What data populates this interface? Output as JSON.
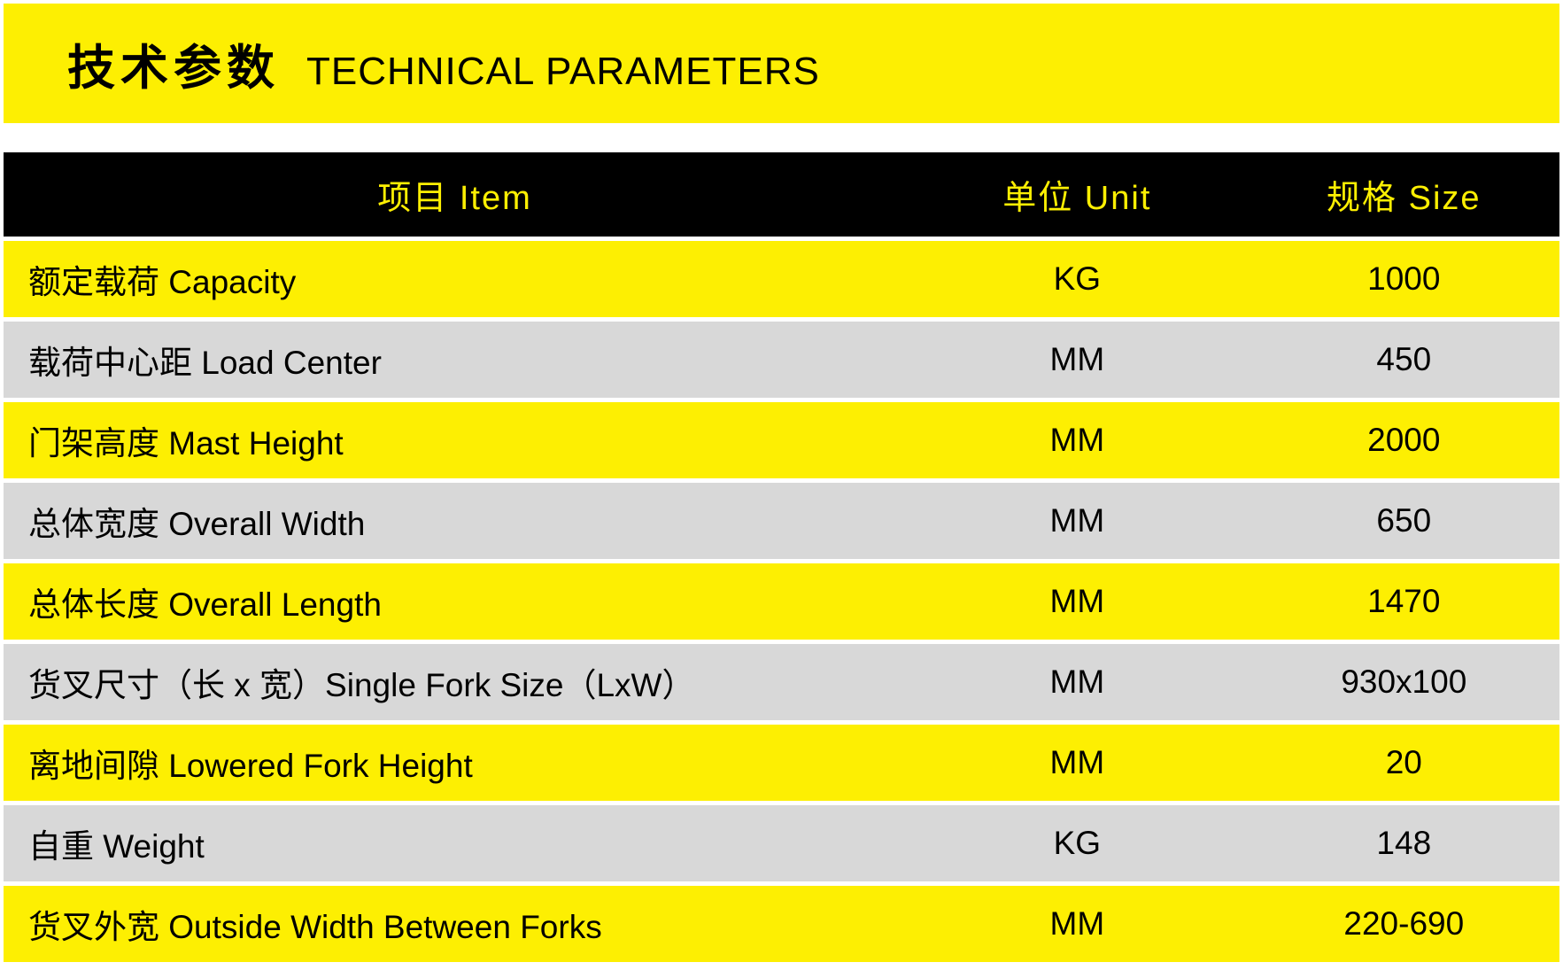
{
  "header": {
    "title_cn": "技术参数",
    "title_en": "TECHNICAL PARAMETERS"
  },
  "table": {
    "type": "table",
    "columns": [
      {
        "label": "项目 Item",
        "width": "58%",
        "align": "center"
      },
      {
        "label": "单位 Unit",
        "width": "22%",
        "align": "center"
      },
      {
        "label": "规格 Size",
        "width": "20%",
        "align": "center"
      }
    ],
    "header_bg_color": "#000000",
    "header_text_color": "#fdef02",
    "row_color_yellow": "#fdef02",
    "row_color_grey": "#d8d8d8",
    "text_color": "#000000",
    "font_size_header": 38,
    "font_size_body": 37,
    "rows": [
      {
        "item": "额定载荷  Capacity",
        "unit": "KG",
        "size": "1000",
        "bg": "yellow"
      },
      {
        "item": "载荷中心距  Load Center",
        "unit": "MM",
        "size": "450",
        "bg": "grey"
      },
      {
        "item": "门架高度  Mast Height",
        "unit": "MM",
        "size": "2000",
        "bg": "yellow"
      },
      {
        "item": "总体宽度  Overall Width",
        "unit": "MM",
        "size": "650",
        "bg": "grey"
      },
      {
        "item": "总体长度  Overall Length",
        "unit": "MM",
        "size": "1470",
        "bg": "yellow"
      },
      {
        "item": "货叉尺寸（长 x 宽）Single Fork Size（LxW）",
        "unit": "MM",
        "size": "930x100",
        "bg": "grey"
      },
      {
        "item": "离地间隙  Lowered Fork Height",
        "unit": "MM",
        "size": "20",
        "bg": "yellow"
      },
      {
        "item": "自重  Weight",
        "unit": "KG",
        "size": "148",
        "bg": "grey"
      },
      {
        "item": "货叉外宽  Outside Width Between Forks",
        "unit": "MM",
        "size": "220-690",
        "bg": "yellow"
      }
    ]
  },
  "colors": {
    "accent_yellow": "#fdef02",
    "black": "#000000",
    "grey": "#d8d8d8",
    "white": "#ffffff"
  }
}
